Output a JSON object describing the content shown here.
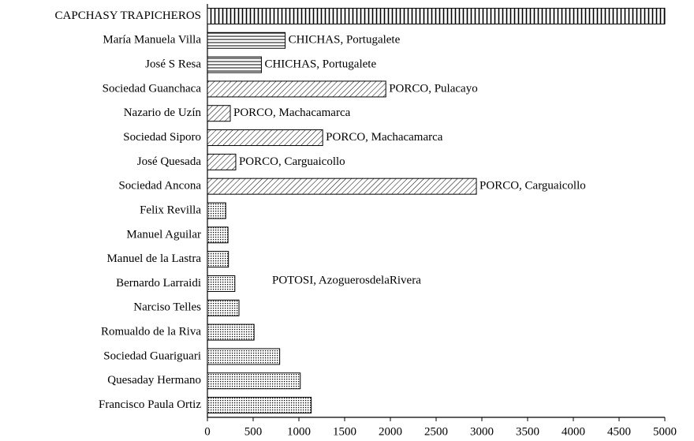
{
  "chart_data": {
    "type": "barh",
    "categories": [
      "CAPCHASY TRAPICHEROS",
      "María Manuela Villa",
      "José S Resa",
      "Sociedad Guanchaca",
      "Nazario de Uzín",
      "Sociedad Siporo",
      "José Quesada",
      "Sociedad Ancona",
      "Felix Revilla",
      "Manuel Aguilar",
      "Manuel de la Lastra",
      "Bernardo Larraidi",
      "Narciso Telles",
      "Romualdo de la Riva",
      "Sociedad Guariguari",
      "Quesaday Hermano",
      "Francisco Paula Ortiz"
    ],
    "values": [
      5000,
      850,
      590,
      1950,
      250,
      1260,
      310,
      2940,
      200,
      225,
      230,
      300,
      345,
      510,
      790,
      1015,
      1135
    ],
    "bar_labels": [
      null,
      "CHICHAS, Portugalete",
      "CHICHAS, Portugalete",
      "PORCO, Pulacayo",
      "PORCO, Machacamarca",
      "PORCO, Machacamarca",
      "PORCO, Carguaicollo",
      "PORCO, Carguaicollo",
      null,
      null,
      null,
      null,
      null,
      null,
      null,
      null,
      null
    ],
    "annotation": "POTOSI, AzoguerosdelaRivera",
    "patterns": [
      "vertical",
      "horizontal",
      "horizontal",
      "diagonal",
      "diagonal",
      "diagonal",
      "diagonal",
      "diagonal",
      "dots",
      "dots",
      "dots",
      "dots",
      "dots",
      "dots",
      "dots",
      "dots",
      "dots"
    ],
    "xlim": [
      0,
      5000
    ],
    "xticks": [
      0,
      500,
      1000,
      1500,
      2000,
      2500,
      3000,
      3500,
      4000,
      4500,
      5000
    ]
  }
}
